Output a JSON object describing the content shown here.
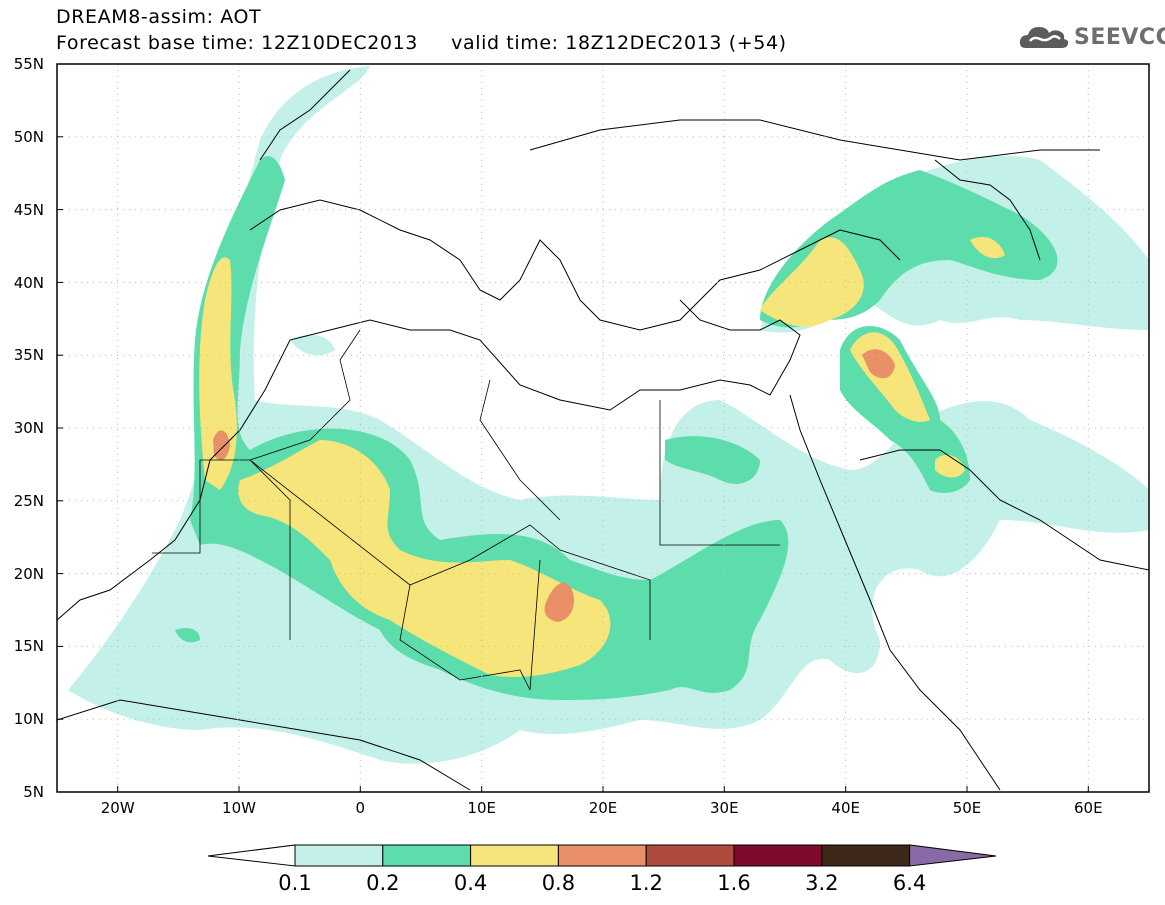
{
  "header": {
    "line1": "DREAM8-assim: AOT",
    "line2": "Forecast base time: 12Z10DEC2013     valid time: 18Z12DEC2013 (+54)"
  },
  "logo": {
    "text": "SEEVCCC",
    "icon": "cloud-icon"
  },
  "map": {
    "lon_range": [
      -25,
      65
    ],
    "lat_range": [
      5,
      55
    ],
    "x_ticks": [
      "20W",
      "10W",
      "0",
      "10E",
      "20E",
      "30E",
      "40E",
      "50E",
      "60E"
    ],
    "x_tick_values": [
      -20,
      -10,
      0,
      10,
      20,
      30,
      40,
      50,
      60
    ],
    "y_ticks": [
      "5N",
      "10N",
      "15N",
      "20N",
      "25N",
      "30N",
      "35N",
      "40N",
      "45N",
      "50N",
      "55N"
    ],
    "y_tick_values": [
      5,
      10,
      15,
      20,
      25,
      30,
      35,
      40,
      45,
      50,
      55
    ],
    "grid": "dotted"
  },
  "colorbar": {
    "labels": [
      "0.1",
      "0.2",
      "0.4",
      "0.8",
      "1.2",
      "1.6",
      "3.2",
      "6.4"
    ],
    "colors": [
      "#ffffff",
      "#c4f0ea",
      "#5ddcac",
      "#f6e57a",
      "#ea9068",
      "#ad4c3e",
      "#7e0a2e",
      "#3c2718",
      "#8a6aa6"
    ]
  }
}
